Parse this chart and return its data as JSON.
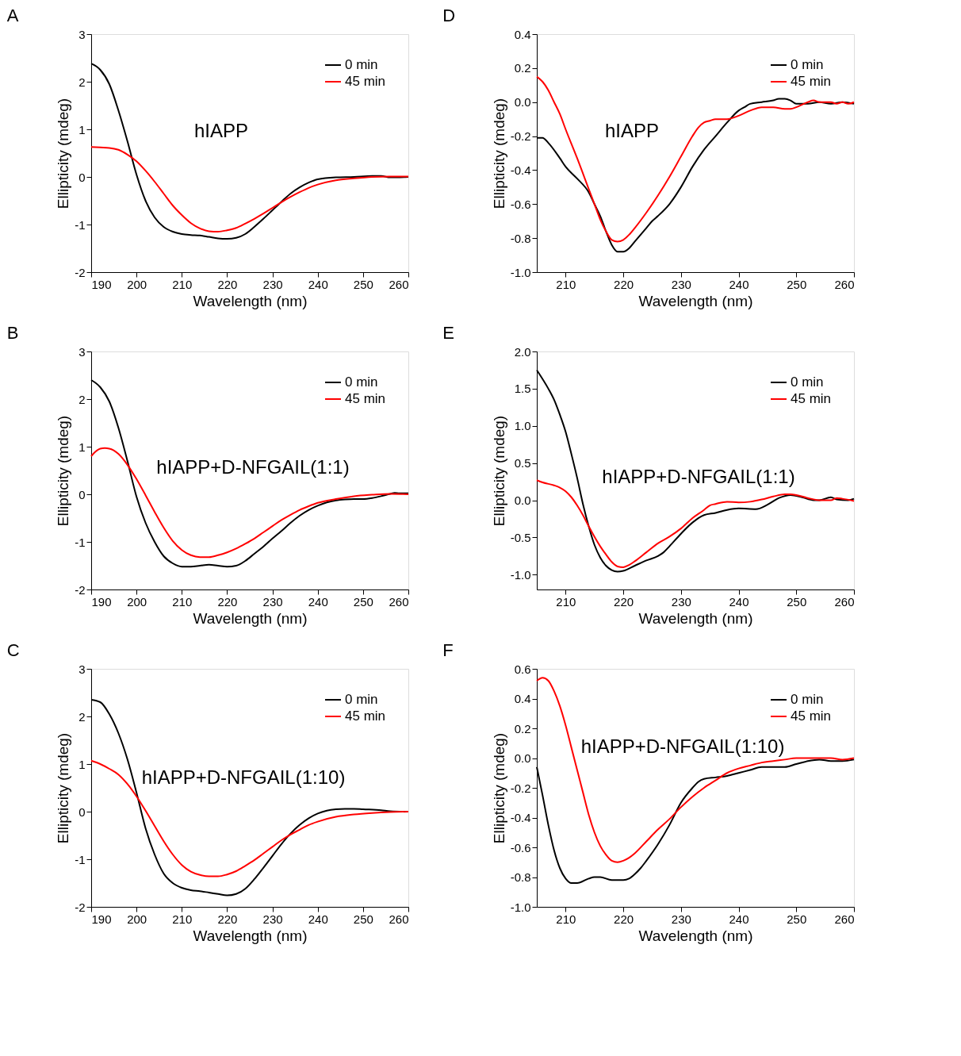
{
  "chart_data": [
    {
      "type": "line",
      "title": "A",
      "xlabel": "Wavelength (nm)",
      "ylabel": "Ellipticity (mdeg)",
      "annotations": [
        "hIAPP"
      ],
      "xlim": [
        190,
        260
      ],
      "xticks": [
        190,
        200,
        210,
        220,
        230,
        240,
        250,
        260
      ],
      "ylim": [
        -2,
        3
      ],
      "yticks": [
        -2,
        -1,
        0,
        1,
        2,
        3
      ],
      "legend": "top right",
      "line_style": "solid",
      "series": [
        {
          "name": "0 min",
          "color": "#000000",
          "x": [
            190,
            192,
            194,
            196,
            198,
            200,
            202,
            204,
            206,
            208,
            210,
            212,
            214,
            216,
            218,
            220,
            222,
            224,
            226,
            228,
            230,
            232,
            234,
            236,
            238,
            240,
            244,
            248,
            252,
            254,
            256,
            260
          ],
          "values": [
            2.38,
            2.25,
            1.95,
            1.4,
            0.75,
            0.05,
            -0.5,
            -0.85,
            -1.05,
            -1.15,
            -1.2,
            -1.22,
            -1.23,
            -1.26,
            -1.29,
            -1.3,
            -1.28,
            -1.2,
            -1.05,
            -0.88,
            -0.7,
            -0.52,
            -0.35,
            -0.22,
            -0.12,
            -0.05,
            -0.01,
            0.0,
            0.02,
            0.02,
            -0.01,
            0.0
          ]
        },
        {
          "name": "45 min",
          "color": "#ff0000",
          "x": [
            190,
            192,
            194,
            196,
            198,
            200,
            202,
            204,
            206,
            208,
            210,
            212,
            214,
            216,
            218,
            220,
            222,
            224,
            226,
            228,
            230,
            232,
            234,
            236,
            238,
            240,
            244,
            248,
            252,
            256,
            260
          ],
          "values": [
            0.63,
            0.62,
            0.61,
            0.57,
            0.47,
            0.33,
            0.13,
            -0.1,
            -0.35,
            -0.6,
            -0.8,
            -0.97,
            -1.08,
            -1.14,
            -1.15,
            -1.12,
            -1.07,
            -0.98,
            -0.88,
            -0.77,
            -0.65,
            -0.53,
            -0.42,
            -0.32,
            -0.23,
            -0.16,
            -0.07,
            -0.03,
            0.0,
            0.01,
            0.01
          ]
        }
      ]
    },
    {
      "type": "line",
      "title": "D",
      "xlabel": "Wavelength (nm)",
      "ylabel": "Ellipticity (mdeg)",
      "annotations": [
        "hIAPP"
      ],
      "xlim": [
        205,
        260
      ],
      "xticks": [
        210,
        220,
        230,
        240,
        250,
        260
      ],
      "ylim": [
        -1.0,
        0.4
      ],
      "yticks": [
        {
          "value": -1,
          "label": "-1.0"
        },
        -0.8,
        -0.6,
        -0.4,
        -0.2,
        {
          "value": 0,
          "label": "0.0"
        },
        0.2,
        0.4
      ],
      "legend": "top right",
      "line_style": "solid",
      "series": [
        {
          "name": "0 min",
          "color": "#000000",
          "x": [
            205,
            206,
            207,
            209,
            210,
            212,
            214,
            215,
            216,
            217,
            218,
            219,
            220,
            221,
            222,
            224,
            225,
            226,
            228,
            230,
            232,
            234,
            236,
            238,
            240,
            241,
            242,
            244,
            246,
            247,
            248,
            249,
            250,
            252,
            254,
            256,
            258,
            260
          ],
          "values": [
            -0.21,
            -0.21,
            -0.24,
            -0.33,
            -0.38,
            -0.45,
            -0.53,
            -0.6,
            -0.67,
            -0.76,
            -0.84,
            -0.88,
            -0.88,
            -0.86,
            -0.82,
            -0.74,
            -0.7,
            -0.67,
            -0.6,
            -0.5,
            -0.38,
            -0.28,
            -0.2,
            -0.12,
            -0.05,
            -0.03,
            -0.01,
            0.0,
            0.01,
            0.02,
            0.02,
            0.01,
            -0.01,
            -0.01,
            0.0,
            -0.01,
            0.0,
            -0.01
          ]
        },
        {
          "name": "45 min",
          "color": "#ff0000",
          "x": [
            205,
            206,
            207,
            208,
            209,
            210,
            212,
            214,
            215,
            216,
            217,
            218,
            219,
            220,
            221,
            222,
            224,
            226,
            228,
            230,
            232,
            233,
            234,
            235,
            236,
            238,
            240,
            242,
            244,
            246,
            248,
            249,
            250,
            252,
            253,
            254,
            256,
            257,
            258,
            259,
            260
          ],
          "values": [
            0.15,
            0.12,
            0.07,
            0.0,
            -0.07,
            -0.16,
            -0.33,
            -0.51,
            -0.6,
            -0.69,
            -0.76,
            -0.81,
            -0.82,
            -0.81,
            -0.78,
            -0.74,
            -0.65,
            -0.55,
            -0.44,
            -0.32,
            -0.2,
            -0.15,
            -0.12,
            -0.11,
            -0.1,
            -0.1,
            -0.08,
            -0.05,
            -0.03,
            -0.03,
            -0.04,
            -0.04,
            -0.03,
            0.0,
            0.01,
            0.0,
            0.0,
            -0.01,
            0.0,
            -0.01,
            0.0
          ]
        }
      ]
    },
    {
      "type": "line",
      "title": "B",
      "xlabel": "Wavelength (nm)",
      "ylabel": "Ellipticity (mdeg)",
      "annotations": [
        "hIAPP+D-NFGAIL(1:1)"
      ],
      "xlim": [
        190,
        260
      ],
      "xticks": [
        190,
        200,
        210,
        220,
        230,
        240,
        250,
        260
      ],
      "ylim": [
        -2,
        3
      ],
      "yticks": [
        -2,
        -1,
        0,
        1,
        2,
        3
      ],
      "legend": "top right",
      "line_style": "solid",
      "series": [
        {
          "name": "0 min",
          "color": "#000000",
          "x": [
            190,
            192,
            194,
            196,
            198,
            200,
            202,
            204,
            206,
            208,
            210,
            212,
            214,
            216,
            218,
            220,
            222,
            224,
            226,
            228,
            230,
            232,
            234,
            236,
            238,
            240,
            242,
            244,
            246,
            248,
            250,
            252,
            254,
            256,
            257,
            258,
            260
          ],
          "values": [
            2.4,
            2.25,
            1.95,
            1.4,
            0.7,
            -0.05,
            -0.6,
            -1.0,
            -1.3,
            -1.45,
            -1.52,
            -1.52,
            -1.5,
            -1.48,
            -1.5,
            -1.52,
            -1.5,
            -1.4,
            -1.25,
            -1.1,
            -0.93,
            -0.77,
            -0.6,
            -0.45,
            -0.33,
            -0.24,
            -0.17,
            -0.13,
            -0.11,
            -0.1,
            -0.1,
            -0.08,
            -0.04,
            0.01,
            0.03,
            0.02,
            0.02
          ]
        },
        {
          "name": "45 min",
          "color": "#ff0000",
          "x": [
            190,
            191,
            192,
            193,
            194,
            196,
            198,
            200,
            202,
            204,
            206,
            208,
            210,
            212,
            214,
            216,
            218,
            220,
            222,
            224,
            226,
            228,
            230,
            232,
            234,
            236,
            238,
            240,
            244,
            248,
            252,
            256,
            260
          ],
          "values": [
            0.8,
            0.9,
            0.96,
            0.97,
            0.96,
            0.85,
            0.62,
            0.32,
            -0.02,
            -0.37,
            -0.7,
            -0.98,
            -1.17,
            -1.28,
            -1.32,
            -1.32,
            -1.28,
            -1.22,
            -1.14,
            -1.04,
            -0.93,
            -0.8,
            -0.67,
            -0.54,
            -0.43,
            -0.33,
            -0.25,
            -0.18,
            -0.1,
            -0.04,
            -0.01,
            0.01,
            0.0
          ]
        }
      ]
    },
    {
      "type": "line",
      "title": "E",
      "xlabel": "Wavelength (nm)",
      "ylabel": "Ellipticity (mdeg)",
      "annotations": [
        "hIAPP+D-NFGAIL(1:1)"
      ],
      "xlim": [
        205,
        260
      ],
      "xticks": [
        210,
        220,
        230,
        240,
        250,
        260
      ],
      "ylim": [
        -1.2,
        2.0
      ],
      "yticks": [
        {
          "value": -1,
          "label": "-1.0"
        },
        -0.5,
        {
          "value": 0,
          "label": "0.0"
        },
        0.5,
        {
          "value": 1,
          "label": "1.0"
        },
        1.5,
        {
          "value": 2,
          "label": "2.0"
        }
      ],
      "legend": "top right",
      "line_style": "solid",
      "series": [
        {
          "name": "0 min",
          "color": "#000000",
          "x": [
            205,
            207,
            208,
            209,
            210,
            211,
            212,
            213,
            214,
            215,
            216,
            217,
            218,
            219,
            220,
            222,
            224,
            226,
            227,
            228,
            230,
            232,
            234,
            236,
            238,
            240,
            243,
            245,
            247,
            249,
            251,
            253,
            254,
            256,
            257,
            259,
            260
          ],
          "values": [
            1.75,
            1.5,
            1.35,
            1.15,
            0.92,
            0.62,
            0.3,
            -0.05,
            -0.35,
            -0.6,
            -0.77,
            -0.88,
            -0.94,
            -0.96,
            -0.95,
            -0.88,
            -0.81,
            -0.75,
            -0.7,
            -0.62,
            -0.45,
            -0.3,
            -0.2,
            -0.17,
            -0.13,
            -0.11,
            -0.12,
            -0.06,
            0.03,
            0.07,
            0.04,
            0.0,
            0.0,
            0.04,
            0.01,
            0.0,
            0.02
          ]
        },
        {
          "name": "45 min",
          "color": "#ff0000",
          "x": [
            205,
            206,
            208,
            209,
            210,
            211,
            212,
            213,
            214,
            216,
            217,
            218,
            219,
            220,
            221,
            222,
            224,
            226,
            228,
            230,
            232,
            234,
            235,
            236,
            238,
            240,
            242,
            244,
            246,
            248,
            249,
            250,
            252,
            254,
            256,
            257,
            258,
            260
          ],
          "values": [
            0.27,
            0.24,
            0.2,
            0.17,
            0.12,
            0.04,
            -0.07,
            -0.2,
            -0.35,
            -0.62,
            -0.73,
            -0.83,
            -0.89,
            -0.9,
            -0.87,
            -0.82,
            -0.7,
            -0.58,
            -0.49,
            -0.38,
            -0.24,
            -0.13,
            -0.07,
            -0.05,
            -0.02,
            -0.03,
            -0.02,
            0.01,
            0.05,
            0.08,
            0.08,
            0.07,
            0.03,
            0.0,
            0.0,
            0.03,
            0.02,
            -0.01
          ]
        }
      ]
    },
    {
      "type": "line",
      "title": "C",
      "xlabel": "Wavelength (nm)",
      "ylabel": "Ellipticity (mdeg)",
      "annotations": [
        "hIAPP+D-NFGAIL(1:10)"
      ],
      "xlim": [
        190,
        260
      ],
      "xticks": [
        190,
        200,
        210,
        220,
        230,
        240,
        250,
        260
      ],
      "ylim": [
        -2,
        3
      ],
      "yticks": [
        -2,
        -1,
        0,
        1,
        2,
        3
      ],
      "legend": "top right",
      "line_style": "solid",
      "series": [
        {
          "name": "0 min",
          "color": "#000000",
          "x": [
            190,
            192,
            194,
            196,
            198,
            200,
            202,
            204,
            206,
            208,
            210,
            212,
            214,
            216,
            218,
            220,
            222,
            224,
            226,
            228,
            230,
            232,
            234,
            236,
            238,
            240,
            242,
            244,
            246,
            248,
            250,
            254,
            256,
            260
          ],
          "values": [
            2.35,
            2.3,
            2.05,
            1.65,
            1.1,
            0.4,
            -0.35,
            -0.9,
            -1.3,
            -1.5,
            -1.6,
            -1.65,
            -1.67,
            -1.7,
            -1.73,
            -1.76,
            -1.73,
            -1.62,
            -1.42,
            -1.18,
            -0.93,
            -0.68,
            -0.46,
            -0.28,
            -0.14,
            -0.04,
            0.02,
            0.05,
            0.06,
            0.06,
            0.05,
            0.03,
            0.01,
            0.0
          ]
        },
        {
          "name": "45 min",
          "color": "#ff0000",
          "x": [
            190,
            192,
            194,
            196,
            198,
            200,
            202,
            204,
            206,
            208,
            210,
            212,
            214,
            216,
            218,
            220,
            222,
            224,
            226,
            228,
            230,
            232,
            234,
            236,
            238,
            240,
            244,
            248,
            252,
            256,
            260
          ],
          "values": [
            1.07,
            1.0,
            0.9,
            0.78,
            0.58,
            0.32,
            0.02,
            -0.3,
            -0.62,
            -0.9,
            -1.12,
            -1.26,
            -1.33,
            -1.36,
            -1.36,
            -1.32,
            -1.25,
            -1.14,
            -1.02,
            -0.88,
            -0.74,
            -0.6,
            -0.48,
            -0.38,
            -0.28,
            -0.21,
            -0.11,
            -0.06,
            -0.03,
            -0.01,
            0.0
          ]
        }
      ]
    },
    {
      "type": "line",
      "title": "F",
      "xlabel": "Wavelength (nm)",
      "ylabel": "Ellipticity (mdeg)",
      "annotations": [
        "hIAPP+D-NFGAIL(1:10)"
      ],
      "xlim": [
        205,
        260
      ],
      "xticks": [
        210,
        220,
        230,
        240,
        250,
        260
      ],
      "ylim": [
        -1.0,
        0.6
      ],
      "yticks": [
        {
          "value": -1,
          "label": "-1.0"
        },
        -0.8,
        -0.6,
        -0.4,
        -0.2,
        {
          "value": 0,
          "label": "0.0"
        },
        0.2,
        0.4,
        0.6
      ],
      "legend": "top right",
      "line_style": "solid",
      "series": [
        {
          "name": "0 min",
          "color": "#000000",
          "x": [
            205,
            206,
            207,
            208,
            209,
            210,
            211,
            212,
            214,
            215,
            216,
            218,
            219,
            220,
            221,
            222,
            223,
            224,
            226,
            228,
            230,
            232,
            233,
            234,
            236,
            238,
            240,
            242,
            244,
            246,
            248,
            250,
            252,
            254,
            256,
            258,
            260
          ],
          "values": [
            -0.06,
            -0.25,
            -0.45,
            -0.62,
            -0.74,
            -0.81,
            -0.84,
            -0.84,
            -0.81,
            -0.8,
            -0.8,
            -0.82,
            -0.82,
            -0.82,
            -0.81,
            -0.78,
            -0.74,
            -0.69,
            -0.58,
            -0.45,
            -0.3,
            -0.2,
            -0.16,
            -0.14,
            -0.13,
            -0.12,
            -0.1,
            -0.08,
            -0.06,
            -0.06,
            -0.06,
            -0.04,
            -0.02,
            -0.01,
            -0.02,
            -0.02,
            -0.01
          ]
        },
        {
          "name": "45 min",
          "color": "#ff0000",
          "x": [
            205,
            206,
            207,
            208,
            209,
            210,
            211,
            212,
            213,
            214,
            215,
            216,
            217,
            218,
            219,
            220,
            221,
            222,
            224,
            226,
            228,
            230,
            232,
            234,
            236,
            238,
            240,
            242,
            244,
            246,
            248,
            250,
            252,
            254,
            256,
            258,
            260
          ],
          "values": [
            0.52,
            0.54,
            0.52,
            0.45,
            0.35,
            0.22,
            0.07,
            -0.08,
            -0.23,
            -0.38,
            -0.5,
            -0.59,
            -0.65,
            -0.69,
            -0.7,
            -0.69,
            -0.67,
            -0.64,
            -0.56,
            -0.48,
            -0.41,
            -0.33,
            -0.26,
            -0.2,
            -0.15,
            -0.1,
            -0.07,
            -0.05,
            -0.03,
            -0.02,
            -0.01,
            0.0,
            0.0,
            0.0,
            0.0,
            -0.01,
            0.0
          ]
        }
      ]
    }
  ]
}
